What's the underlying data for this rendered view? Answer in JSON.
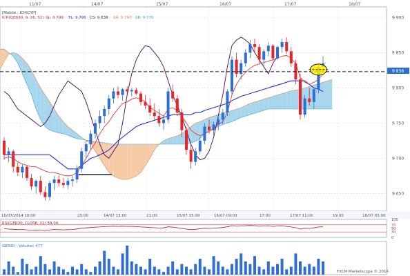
{
  "chart_data": {
    "type": "candlestick",
    "top_dates": [
      "11/07",
      "14/07",
      "15/07",
      "16/07",
      "17/07",
      "18/07"
    ],
    "bottom_time_labels": [
      "10/07/2014 18:00",
      "20:00",
      "14/07 13:00",
      "21:00",
      "15/07 15:00",
      "16/07 09:00",
      "17:00",
      "17/07 11:00",
      "19:00",
      "18/07 03:00"
    ],
    "price_axis": {
      "ticks": [
        9650,
        9700,
        9750,
        9800,
        9850,
        9900
      ],
      "ylim": [
        9625,
        9915
      ],
      "current_value": "9 838"
    },
    "indicator_legend": {
      "label1": "[Mobile : ICHICYP]",
      "series_label": "ICH(GER30, 9, 26, 52)",
      "sl": "SL: 9 799",
      "tl": "TL: 9 795",
      "cs": "CS: 9 838",
      "sa": "SA: 9 797",
      "sb": "SB: 9 770"
    },
    "candles": [
      [
        9725,
        9730,
        9698,
        9705
      ],
      [
        9705,
        9715,
        9695,
        9710
      ],
      [
        9710,
        9712,
        9680,
        9688
      ],
      [
        9688,
        9695,
        9675,
        9680
      ],
      [
        9680,
        9692,
        9672,
        9688
      ],
      [
        9688,
        9690,
        9668,
        9672
      ],
      [
        9672,
        9678,
        9655,
        9660
      ],
      [
        9660,
        9670,
        9650,
        9668
      ],
      [
        9668,
        9675,
        9648,
        9652
      ],
      [
        9652,
        9660,
        9640,
        9645
      ],
      [
        9645,
        9668,
        9640,
        9665
      ],
      [
        9665,
        9675,
        9655,
        9670
      ],
      [
        9670,
        9676,
        9660,
        9665
      ],
      [
        9665,
        9672,
        9658,
        9662
      ],
      [
        9662,
        9672,
        9656,
        9668
      ],
      [
        9668,
        9675,
        9660,
        9670
      ],
      [
        9670,
        9690,
        9665,
        9685
      ],
      [
        9685,
        9715,
        9680,
        9710
      ],
      [
        9710,
        9725,
        9700,
        9720
      ],
      [
        9720,
        9740,
        9712,
        9735
      ],
      [
        9735,
        9755,
        9728,
        9750
      ],
      [
        9750,
        9768,
        9742,
        9760
      ],
      [
        9760,
        9775,
        9750,
        9770
      ],
      [
        9770,
        9790,
        9762,
        9785
      ],
      [
        9785,
        9800,
        9778,
        9795
      ],
      [
        9795,
        9802,
        9785,
        9790
      ],
      [
        9790,
        9800,
        9782,
        9798
      ],
      [
        9798,
        9802,
        9790,
        9795
      ],
      [
        9795,
        9800,
        9788,
        9797
      ],
      [
        9797,
        9800,
        9790,
        9792
      ],
      [
        9792,
        9795,
        9775,
        9780
      ],
      [
        9780,
        9790,
        9770,
        9775
      ],
      [
        9775,
        9785,
        9760,
        9765
      ],
      [
        9765,
        9778,
        9755,
        9760
      ],
      [
        9760,
        9770,
        9745,
        9750
      ],
      [
        9750,
        9760,
        9740,
        9755
      ],
      [
        9755,
        9800,
        9750,
        9795
      ],
      [
        9795,
        9805,
        9780,
        9785
      ],
      [
        9785,
        9790,
        9760,
        9765
      ],
      [
        9765,
        9770,
        9730,
        9740
      ],
      [
        9740,
        9745,
        9705,
        9712
      ],
      [
        9712,
        9720,
        9685,
        9695
      ],
      [
        9695,
        9715,
        9690,
        9710
      ],
      [
        9710,
        9730,
        9705,
        9725
      ],
      [
        9725,
        9750,
        9720,
        9745
      ],
      [
        9745,
        9755,
        9735,
        9740
      ],
      [
        9740,
        9752,
        9732,
        9748
      ],
      [
        9748,
        9760,
        9740,
        9755
      ],
      [
        9755,
        9770,
        9748,
        9765
      ],
      [
        9765,
        9798,
        9760,
        9795
      ],
      [
        9795,
        9845,
        9790,
        9840
      ],
      [
        9840,
        9850,
        9815,
        9820
      ],
      [
        9820,
        9840,
        9812,
        9835
      ],
      [
        9835,
        9855,
        9830,
        9850
      ],
      [
        9850,
        9868,
        9842,
        9862
      ],
      [
        9862,
        9870,
        9850,
        9858
      ],
      [
        9858,
        9862,
        9835,
        9840
      ],
      [
        9840,
        9855,
        9832,
        9852
      ],
      [
        9852,
        9865,
        9845,
        9860
      ],
      [
        9860,
        9862,
        9838,
        9842
      ],
      [
        9842,
        9860,
        9840,
        9858
      ],
      [
        9858,
        9870,
        9850,
        9865
      ],
      [
        9865,
        9872,
        9848,
        9852
      ],
      [
        9852,
        9858,
        9830,
        9835
      ],
      [
        9835,
        9840,
        9805,
        9812
      ],
      [
        9812,
        9820,
        9755,
        9762
      ],
      [
        9762,
        9790,
        9758,
        9785
      ],
      [
        9785,
        9800,
        9775,
        9780
      ],
      [
        9780,
        9800,
        9770,
        9798
      ],
      [
        9798,
        9835,
        9792,
        9830
      ],
      [
        9830,
        9845,
        9822,
        9835
      ]
    ],
    "lines": {
      "tenkan": [
        9700,
        9702,
        9700,
        9695,
        9692,
        9690,
        9688,
        9688,
        9685,
        9682,
        9680,
        9680,
        9678,
        9676,
        9675,
        9676,
        9680,
        9690,
        9700,
        9712,
        9722,
        9735,
        9745,
        9752,
        9762,
        9770,
        9778,
        9780,
        9784,
        9786,
        9784,
        9780,
        9772,
        9768,
        9764,
        9760,
        9770,
        9772,
        9768,
        9760,
        9750,
        9740,
        9735,
        9732,
        9735,
        9738,
        9742,
        9748,
        9752,
        9765,
        9790,
        9805,
        9815,
        9822,
        9828,
        9832,
        9834,
        9836,
        9838,
        9840,
        9842,
        9845,
        9846,
        9842,
        9835,
        9815,
        9808,
        9805,
        9808,
        9812,
        9820
      ],
      "kijun": [
        9705,
        9705,
        9705,
        9705,
        9705,
        9705,
        9705,
        9705,
        9705,
        9705,
        9705,
        9700,
        9695,
        9690,
        9685,
        9685,
        9685,
        9690,
        9695,
        9700,
        9702,
        9705,
        9708,
        9712,
        9718,
        9725,
        9730,
        9735,
        9740,
        9745,
        9748,
        9750,
        9752,
        9754,
        9756,
        9758,
        9760,
        9762,
        9762,
        9762,
        9762,
        9762,
        9765,
        9765,
        9768,
        9770,
        9772,
        9774,
        9776,
        9778,
        9782,
        9785,
        9788,
        9790,
        9792,
        9794,
        9796,
        9798,
        9800,
        9802,
        9804,
        9806,
        9808,
        9810,
        9810,
        9810,
        9810,
        9805,
        9800,
        9798,
        9795
      ],
      "chikou": [
        9795,
        9790,
        9780,
        9770,
        9765,
        9760,
        9755,
        9750,
        9745,
        9750,
        9760,
        9775,
        9790,
        9800,
        9810,
        9805,
        9800,
        9795,
        9780,
        9760,
        9740,
        9720,
        9705,
        9700,
        9710,
        9720,
        9750,
        9790,
        9820,
        9840,
        9852,
        9860,
        9858,
        9850,
        9842,
        9830,
        9810,
        9790,
        9775,
        9760,
        9740,
        9720,
        9705,
        9698,
        9700,
        9710,
        9730,
        9760,
        9790,
        9830,
        9860,
        9868,
        9872,
        9868,
        9862,
        9850,
        9840,
        9830,
        9820,
        9835,
        9845
      ],
      "span_a": [
        9790,
        9790,
        9790,
        9790,
        9792,
        9792,
        9794,
        9796,
        9800,
        9805,
        9815,
        9825,
        9838,
        9848,
        9850,
        9848,
        9842,
        9835,
        9825,
        9812,
        9800,
        9790,
        9780,
        9770,
        9760,
        9752,
        9745,
        9740,
        9735,
        9730,
        9725,
        9720,
        9710,
        9700,
        9690,
        9680,
        9675,
        9672,
        9670,
        9670,
        9672,
        9675,
        9680,
        9690,
        9700,
        9712,
        9720,
        9725,
        9728,
        9730,
        9732,
        9735,
        9740,
        9745,
        9750,
        9752,
        9755,
        9758,
        9760,
        9762,
        9764,
        9765,
        9768,
        9770,
        9772,
        9775,
        9778,
        9780,
        9782,
        9784,
        9786,
        9788,
        9790,
        9792,
        9794,
        9796,
        9797,
        9798,
        9800,
        9802,
        9804,
        9806,
        9808,
        9810,
        9812
      ],
      "span_b": [
        9850,
        9850,
        9850,
        9850,
        9850,
        9850,
        9850,
        9850,
        9852,
        9855,
        9855,
        9855,
        9855,
        9850,
        9845,
        9835,
        9820,
        9805,
        9790,
        9770,
        9755,
        9745,
        9740,
        9738,
        9736,
        9735,
        9733,
        9730,
        9728,
        9727,
        9726,
        9725,
        9724,
        9723,
        9722,
        9721,
        9720,
        9720,
        9720,
        9720,
        9720,
        9720,
        9720,
        9720,
        9720,
        9720,
        9720,
        9720,
        9720,
        9720,
        9720,
        9720,
        9720,
        9722,
        9724,
        9728,
        9735,
        9740,
        9742,
        9745,
        9748,
        9750,
        9752,
        9755,
        9758,
        9760,
        9762,
        9764,
        9766,
        9768,
        9770,
        9770,
        9770,
        9770,
        9770,
        9770,
        9770,
        9770,
        9770,
        9770,
        9770,
        9770,
        9770,
        9770,
        9770
      ]
    },
    "rsi": {
      "label": "RSI(GER30, CLOSE, 21) 59,04",
      "ticks": [
        100,
        70,
        50,
        30,
        0
      ],
      "values": [
        48,
        46,
        45,
        43,
        44,
        42,
        40,
        41,
        39,
        38,
        42,
        44,
        43,
        42,
        43,
        44,
        47,
        51,
        53,
        55,
        57,
        58,
        60,
        61,
        62,
        61,
        62,
        61,
        61,
        60,
        58,
        57,
        55,
        54,
        52,
        53,
        59,
        57,
        54,
        50,
        46,
        43,
        45,
        48,
        51,
        50,
        52,
        53,
        55,
        59,
        65,
        62,
        63,
        65,
        66,
        65,
        62,
        63,
        64,
        61,
        63,
        64,
        61,
        58,
        54,
        46,
        51,
        50,
        53,
        58,
        59
      ]
    },
    "volume": {
      "label": "GER30 - Volume: 477",
      "values": [
        2,
        5,
        3,
        1,
        6,
        4,
        2,
        3,
        7,
        4,
        2,
        5,
        3,
        2,
        1,
        3,
        2,
        4,
        2,
        1,
        3,
        5,
        9,
        6,
        3,
        2,
        8,
        11,
        5,
        4,
        3,
        2,
        6,
        3,
        2,
        1,
        3,
        5,
        2,
        4,
        3,
        2,
        4,
        6,
        3,
        2,
        7,
        5,
        3,
        2,
        4,
        6,
        8,
        5,
        4,
        7,
        3,
        2,
        5,
        3,
        4,
        6,
        2,
        3,
        8,
        5,
        3,
        4,
        3,
        6,
        5
      ]
    },
    "watermark": "FXCM Marketscope © 2014"
  },
  "colors": {
    "background": "#ffffff",
    "panel_bg": "#ffffff",
    "grid": "#d7dfea",
    "axis_text": "#555555",
    "bull": "#2f6fd4",
    "bear": "#e2262a",
    "tenkan": "#e23a3a",
    "kijun": "#2a2ad6",
    "chikou": "#5a1a5e",
    "kumo_bear": "#f5c79e",
    "kumo_bull": "#9fd2ea",
    "span_a_line": "#e08a4a",
    "span_b_line": "#3aa7cf",
    "volume": "#2f6fd4",
    "rsi_line": "#8b2a2a",
    "rsi_band": "#e23a3a",
    "date_marker": "#f0a020",
    "highlight": "#ffee00"
  }
}
